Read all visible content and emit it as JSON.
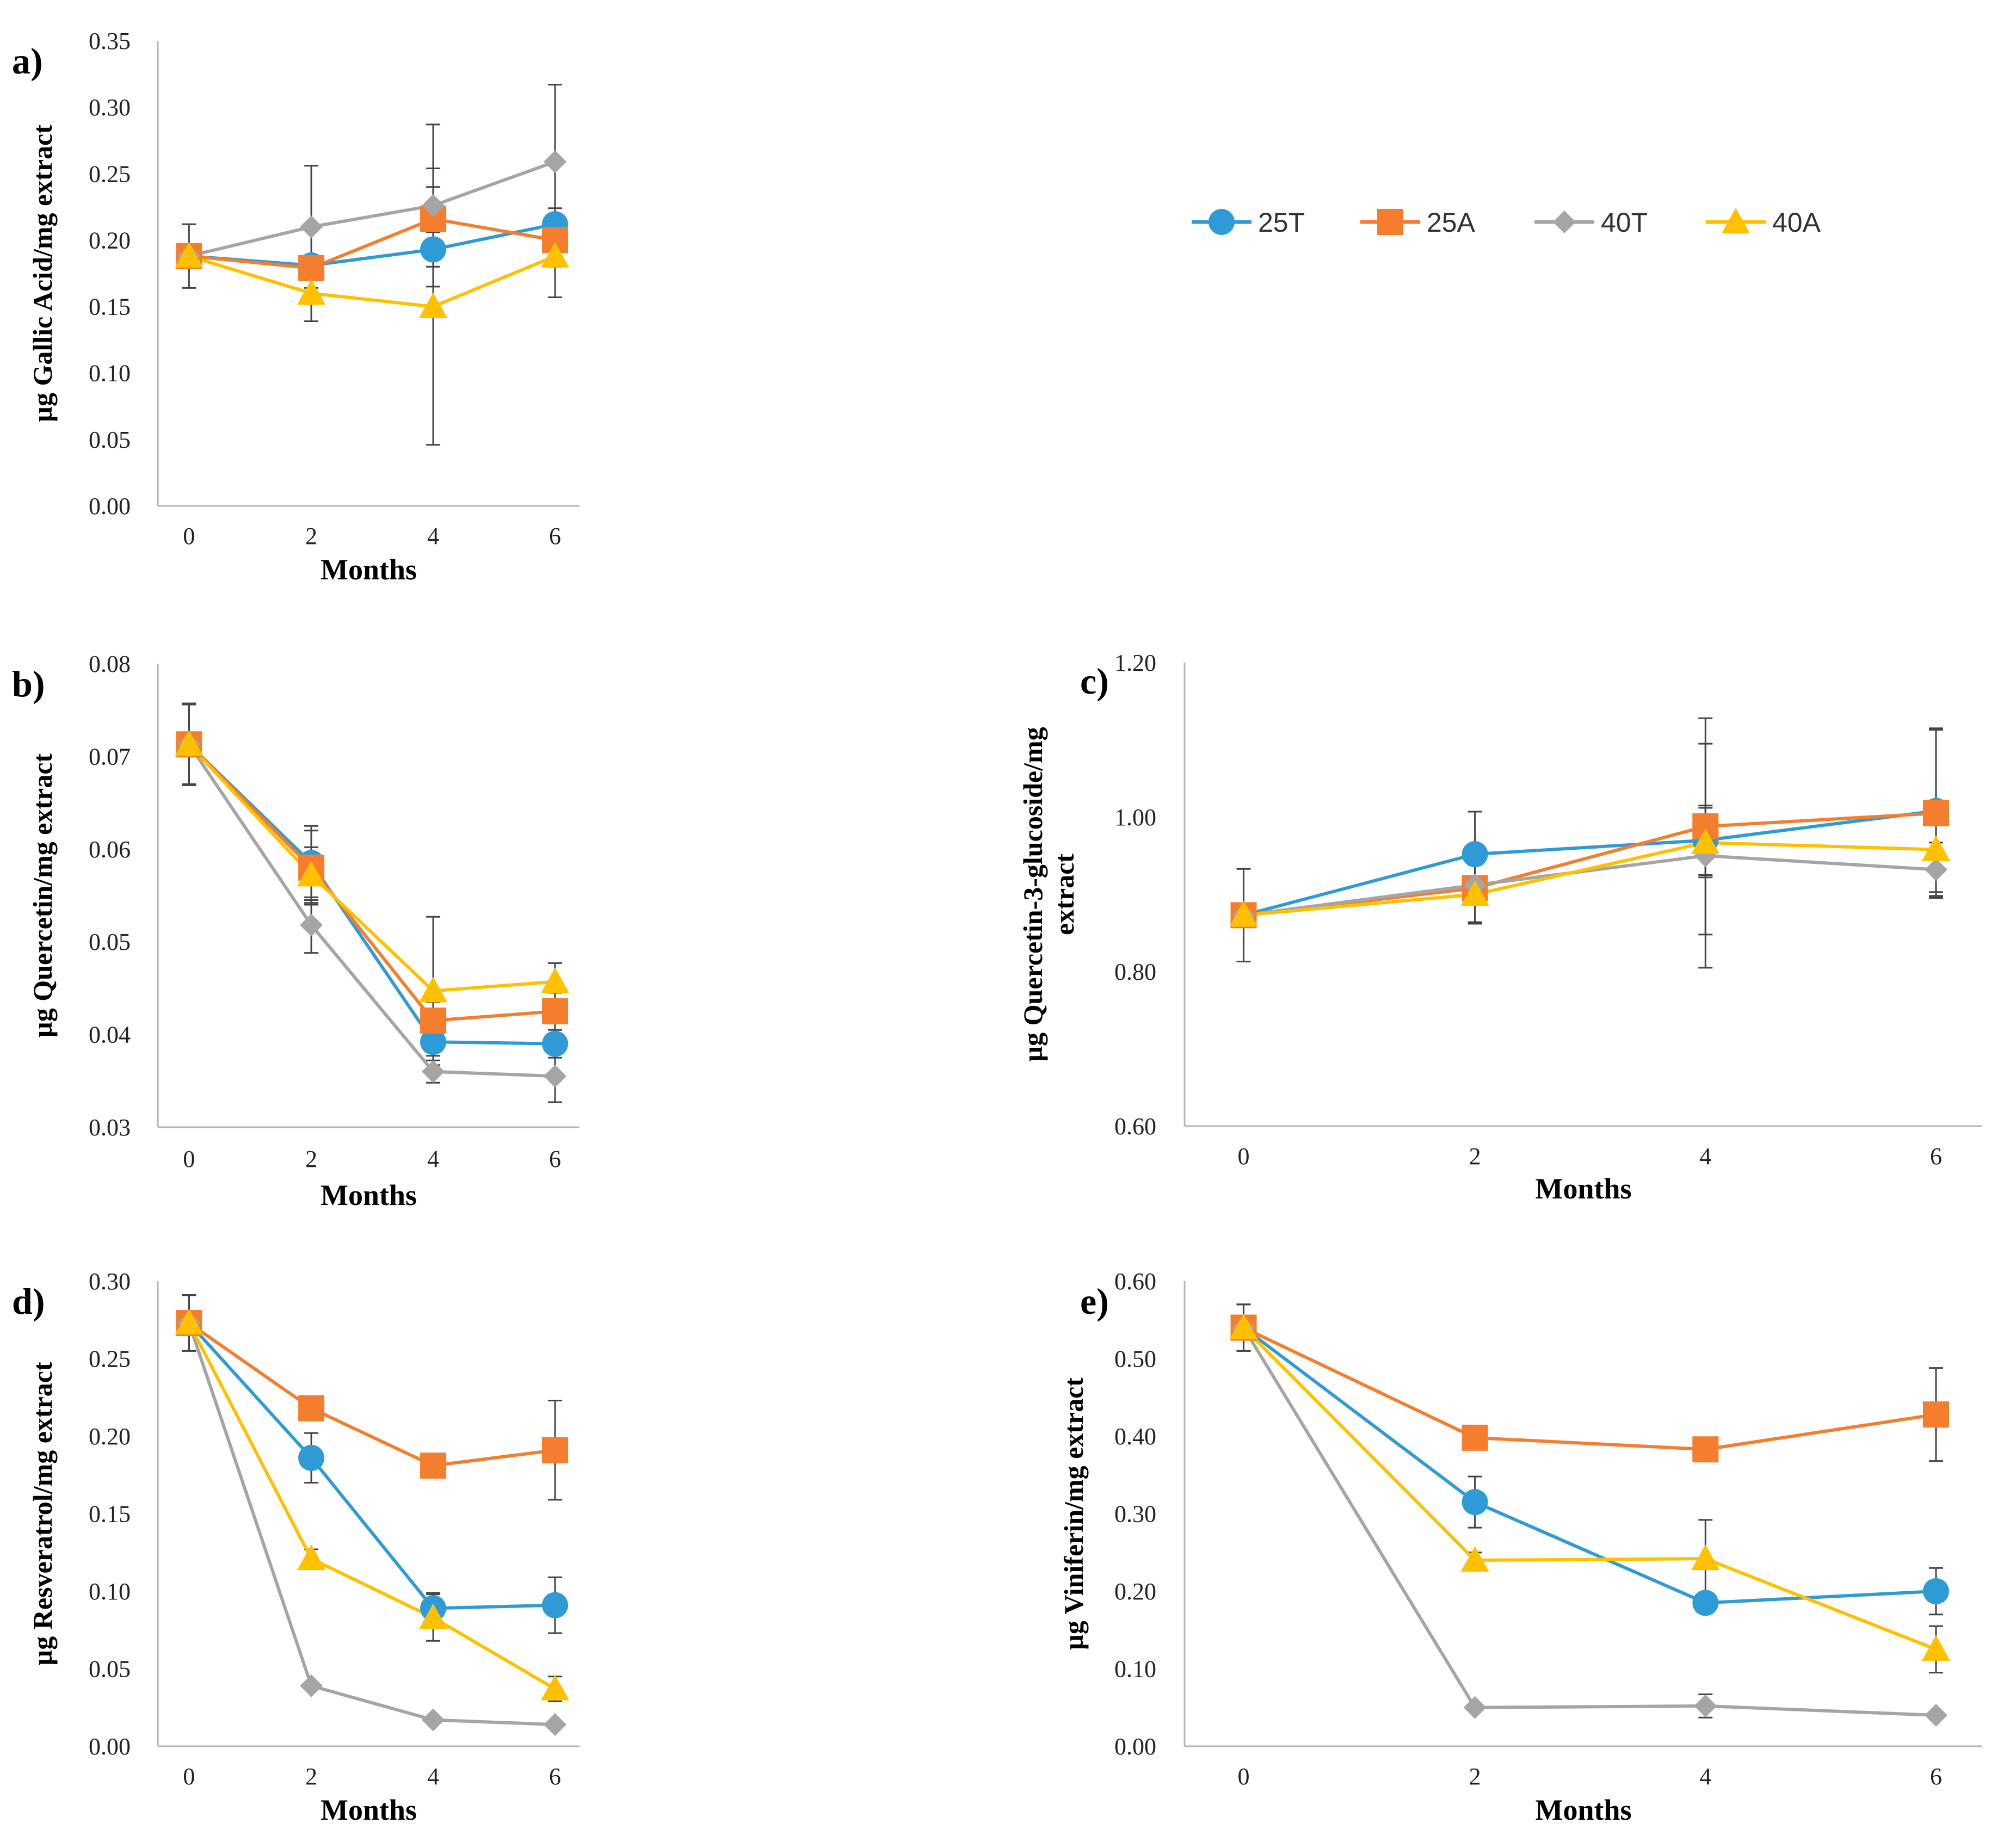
{
  "legend": [
    {
      "name": "25T",
      "color": "#2E9BD6",
      "marker": "circle"
    },
    {
      "name": "25A",
      "color": "#F47E2E",
      "marker": "square"
    },
    {
      "name": "40T",
      "color": "#A5A5A5",
      "marker": "diamond"
    },
    {
      "name": "40A",
      "color": "#FFC000",
      "marker": "triangle"
    }
  ],
  "chart_data": [
    {
      "type": "line",
      "letter": "a)",
      "title": "",
      "xlabel": "Months",
      "ylabel": "µg Gallic  Acid/mg extract",
      "categories": [
        "0",
        "2",
        "4",
        "6"
      ],
      "ylim": [
        0,
        0.35
      ],
      "yticks": [
        "0.00",
        "0.05",
        "0.10",
        "0.15",
        "0.20",
        "0.25",
        "0.30",
        "0.35"
      ],
      "series": [
        {
          "name": "25T",
          "values": [
            0.188,
            0.181,
            0.193,
            0.212
          ],
          "err": [
            0,
            0,
            0.013,
            0.012
          ]
        },
        {
          "name": "25A",
          "values": [
            0.188,
            0.179,
            0.216,
            0.2
          ],
          "err": [
            0,
            0,
            0.024,
            0.02
          ]
        },
        {
          "name": "40T",
          "values": [
            0.188,
            0.21,
            0.226,
            0.259
          ],
          "err": [
            0,
            0.046,
            0.061,
            0.058
          ]
        },
        {
          "name": "40A",
          "values": [
            0.188,
            0.16,
            0.15,
            0.188
          ],
          "err": [
            0.024,
            0.021,
            0.104,
            0.031
          ]
        }
      ]
    },
    {
      "type": "line",
      "letter": "b)",
      "title": "",
      "xlabel": "Months",
      "ylabel": "µg Quercetin/mg extract",
      "categories": [
        "0",
        "2",
        "4",
        "6"
      ],
      "ylim": [
        0.03,
        0.08
      ],
      "yticks": [
        "0.03",
        "0.04",
        "0.05",
        "0.06",
        "0.07",
        "0.08"
      ],
      "series": [
        {
          "name": "25T",
          "values": [
            0.0713,
            0.0585,
            0.0392,
            0.039
          ],
          "err": [
            0.0044,
            0.004,
            0.0015,
            0.0015
          ]
        },
        {
          "name": "25A",
          "values": [
            0.0713,
            0.058,
            0.0415,
            0.0425
          ],
          "err": [
            0.0043,
            0.004,
            0.002,
            0.002
          ]
        },
        {
          "name": "40T",
          "values": [
            0.0713,
            0.0518,
            0.036,
            0.0355
          ],
          "err": [
            0.0044,
            0.003,
            0.0012,
            0.0028
          ]
        },
        {
          "name": "40A",
          "values": [
            0.0713,
            0.0572,
            0.0447,
            0.0457
          ],
          "err": [
            0.0044,
            0.003,
            0.008,
            0.002
          ]
        }
      ]
    },
    {
      "type": "line",
      "letter": "c)",
      "title": "",
      "xlabel": "Months",
      "ylabel": "µg Quercetin-3-glucoside/mg extract",
      "ylabel_lines": [
        "µg Quercetin-3-glucoside/mg",
        "extract"
      ],
      "categories": [
        "0",
        "2",
        "4",
        "6"
      ],
      "ylim": [
        0.6,
        1.2
      ],
      "yticks": [
        "0.60",
        "0.80",
        "1.00",
        "1.20"
      ],
      "series": [
        {
          "name": "25T",
          "values": [
            0.873,
            0.952,
            0.97,
            1.008
          ],
          "err": [
            0.06,
            0.055,
            0.045,
            0.105
          ]
        },
        {
          "name": "25A",
          "values": [
            0.873,
            0.908,
            0.988,
            1.005
          ],
          "err": [
            0,
            0.045,
            0.14,
            0.11
          ]
        },
        {
          "name": "40T",
          "values": [
            0.873,
            0.912,
            0.95,
            0.932
          ],
          "err": [
            0.06,
            0.048,
            0.145,
            0.035
          ]
        },
        {
          "name": "40A",
          "values": [
            0.873,
            0.9,
            0.967,
            0.958
          ],
          "err": [
            0.06,
            0.038,
            0.045,
            0.06
          ]
        }
      ]
    },
    {
      "type": "line",
      "letter": "d)",
      "title": "",
      "xlabel": "Months",
      "ylabel": "µg Resveratrol/mg extract",
      "categories": [
        "0",
        "2",
        "4",
        "6"
      ],
      "ylim": [
        0,
        0.3
      ],
      "yticks": [
        "0.00",
        "0.05",
        "0.10",
        "0.15",
        "0.20",
        "0.25",
        "0.30"
      ],
      "series": [
        {
          "name": "25T",
          "values": [
            0.273,
            0.186,
            0.089,
            0.091
          ],
          "err": [
            0.018,
            0.016,
            0.01,
            0.018
          ]
        },
        {
          "name": "25A",
          "values": [
            0.273,
            0.218,
            0.181,
            0.191
          ],
          "err": [
            0.018,
            0,
            0,
            0.032
          ]
        },
        {
          "name": "40T",
          "values": [
            0.273,
            0.039,
            0.017,
            0.014
          ],
          "err": [
            0.018,
            0,
            0,
            0
          ]
        },
        {
          "name": "40A",
          "values": [
            0.273,
            0.121,
            0.083,
            0.037
          ],
          "err": [
            0.018,
            0.006,
            0.015,
            0.008
          ]
        }
      ]
    },
    {
      "type": "line",
      "letter": "e)",
      "title": "",
      "xlabel": "Months",
      "ylabel": "µg Viniferin/mg  extract",
      "categories": [
        "0",
        "2",
        "4",
        "6"
      ],
      "ylim": [
        0,
        0.6
      ],
      "yticks": [
        "0.00",
        "0.10",
        "0.20",
        "0.30",
        "0.40",
        "0.50",
        "0.60"
      ],
      "series": [
        {
          "name": "25T",
          "values": [
            0.54,
            0.315,
            0.185,
            0.2
          ],
          "err": [
            0.03,
            0.033,
            0,
            0.03
          ]
        },
        {
          "name": "25A",
          "values": [
            0.54,
            0.398,
            0.383,
            0.428
          ],
          "err": [
            0.03,
            0,
            0,
            0.06
          ]
        },
        {
          "name": "40T",
          "values": [
            0.54,
            0.05,
            0.052,
            0.04
          ],
          "err": [
            0.03,
            0,
            0.015,
            0
          ]
        },
        {
          "name": "40A",
          "values": [
            0.54,
            0.24,
            0.242,
            0.125
          ],
          "err": [
            0.03,
            0.01,
            0.05,
            0.03
          ]
        }
      ]
    }
  ]
}
